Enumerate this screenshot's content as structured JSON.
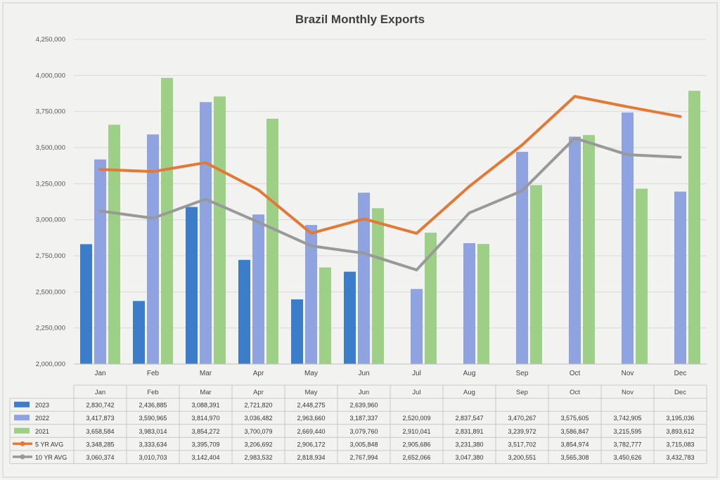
{
  "chart_data": {
    "type": "bar",
    "title": "Brazil Monthly Exports",
    "categories": [
      "Jan",
      "Feb",
      "Mar",
      "Apr",
      "May",
      "Jun",
      "Jul",
      "Aug",
      "Sep",
      "Oct",
      "Nov",
      "Dec"
    ],
    "ylim": [
      2000000,
      4250000
    ],
    "yticks": [
      2000000,
      2250000,
      2500000,
      2750000,
      3000000,
      3250000,
      3500000,
      3750000,
      4000000,
      4250000
    ],
    "ytick_labels": [
      "2,000,000",
      "2,250,000",
      "2,500,000",
      "2,750,000",
      "3,000,000",
      "3,250,000",
      "3,500,000",
      "3,750,000",
      "4,000,000",
      "4,250,000"
    ],
    "grid": true,
    "legend_placement": "data-table",
    "series": [
      {
        "name": "2023",
        "kind": "bar",
        "color": "#3b7dc8",
        "values": [
          2830742,
          2436885,
          3088391,
          2721820,
          2448275,
          2639960,
          null,
          null,
          null,
          null,
          null,
          null
        ],
        "labels": [
          "2,830,742",
          "2,436,885",
          "3,088,391",
          "2,721,820",
          "2,448,275",
          "2,639,960",
          "",
          "",
          "",
          "",
          "",
          ""
        ]
      },
      {
        "name": "2022",
        "kind": "bar",
        "color": "#8ea3df",
        "values": [
          3417873,
          3590965,
          3814970,
          3036482,
          2963660,
          3187337,
          2520009,
          2837547,
          3470267,
          3575605,
          3742905,
          3195036
        ],
        "labels": [
          "3,417,873",
          "3,590,965",
          "3,814,970",
          "3,036,482",
          "2,963,660",
          "3,187,337",
          "2,520,009",
          "2,837,547",
          "3,470,267",
          "3,575,605",
          "3,742,905",
          "3,195,036"
        ]
      },
      {
        "name": "2021",
        "kind": "bar",
        "color": "#9dcf86",
        "values": [
          3658584,
          3983014,
          3854272,
          3700079,
          2669440,
          3079760,
          2910041,
          2831891,
          3239972,
          3586847,
          3215595,
          3893612
        ],
        "labels": [
          "3,658,584",
          "3,983,014",
          "3,854,272",
          "3,700,079",
          "2,669,440",
          "3,079,760",
          "2,910,041",
          "2,831,891",
          "3,239,972",
          "3,586,847",
          "3,215,595",
          "3,893,612"
        ]
      },
      {
        "name": "5 YR AVG",
        "kind": "line",
        "color": "#e27a36",
        "values": [
          3348285,
          3333634,
          3395709,
          3206692,
          2906172,
          3005848,
          2905686,
          3231380,
          3517702,
          3854974,
          3782777,
          3715083
        ],
        "labels": [
          "3,348,285",
          "3,333,634",
          "3,395,709",
          "3,206,692",
          "2,906,172",
          "3,005,848",
          "2,905,686",
          "3,231,380",
          "3,517,702",
          "3,854,974",
          "3,782,777",
          "3,715,083"
        ]
      },
      {
        "name": "10 YR AVG",
        "kind": "line",
        "color": "#999999",
        "values": [
          3060374,
          3010703,
          3142404,
          2983532,
          2818934,
          2767994,
          2652066,
          3047380,
          3200551,
          3565308,
          3450626,
          3432783
        ],
        "labels": [
          "3,060,374",
          "3,010,703",
          "3,142,404",
          "2,983,532",
          "2,818,934",
          "2,767,994",
          "2,652,066",
          "3,047,380",
          "3,200,551",
          "3,565,308",
          "3,450,626",
          "3,432,783"
        ]
      }
    ]
  }
}
